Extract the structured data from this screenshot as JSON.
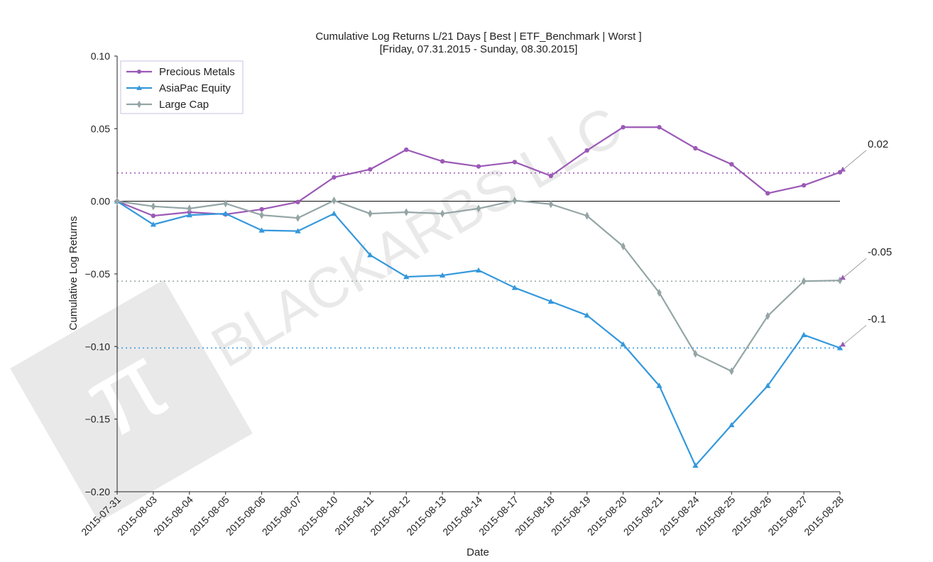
{
  "chart_data": {
    "type": "line",
    "title_line1": "Cumulative Log Returns L/21 Days [ Best | ETF_Benchmark | Worst ]",
    "title_line2": "[Friday, 07.31.2015 - Sunday, 08.30.2015]",
    "xlabel": "Date",
    "ylabel": "Cumulative Log Returns",
    "ylim": [
      -0.2,
      0.1
    ],
    "yticks": [
      0.1,
      0.05,
      0.0,
      -0.05,
      -0.1,
      -0.15,
      -0.2
    ],
    "ytick_labels": [
      "0.10",
      "0.05",
      "0.00",
      "−0.05",
      "−0.10",
      "−0.15",
      "−0.20"
    ],
    "categories": [
      "2015-07-31",
      "2015-08-03",
      "2015-08-04",
      "2015-08-05",
      "2015-08-06",
      "2015-08-07",
      "2015-08-10",
      "2015-08-11",
      "2015-08-12",
      "2015-08-13",
      "2015-08-14",
      "2015-08-17",
      "2015-08-18",
      "2015-08-19",
      "2015-08-20",
      "2015-08-21",
      "2015-08-24",
      "2015-08-25",
      "2015-08-26",
      "2015-08-27",
      "2015-08-28"
    ],
    "legend_position": "top-left",
    "watermark": "BLACKARBS LLC",
    "series": [
      {
        "name": "Precious Metals",
        "color": "#9b59b6",
        "marker": "circle",
        "values": [
          0.0,
          -0.01,
          -0.0075,
          -0.009,
          -0.0055,
          -0.0005,
          0.0165,
          0.022,
          0.0355,
          0.0275,
          0.024,
          0.027,
          0.0175,
          0.035,
          0.051,
          0.051,
          0.0365,
          0.0255,
          0.0055,
          0.011,
          0.02
        ],
        "ref_level": 0.0195,
        "annotation": "0.02"
      },
      {
        "name": "AsiaPac Equity",
        "color": "#3498db",
        "marker": "triangle",
        "values": [
          0.0,
          -0.016,
          -0.0095,
          -0.0085,
          -0.02,
          -0.0205,
          -0.0085,
          -0.037,
          -0.052,
          -0.051,
          -0.0475,
          -0.0595,
          -0.069,
          -0.0785,
          -0.0985,
          -0.127,
          -0.182,
          -0.154,
          -0.127,
          -0.092,
          -0.101
        ],
        "ref_level": -0.101,
        "annotation": "-0.1"
      },
      {
        "name": "Large Cap",
        "color": "#95a5a6",
        "marker": "diamond",
        "values": [
          0.0,
          -0.0035,
          -0.005,
          -0.0015,
          -0.0095,
          -0.0115,
          0.0005,
          -0.0085,
          -0.0075,
          -0.0085,
          -0.005,
          0.0005,
          -0.002,
          -0.01,
          -0.031,
          -0.063,
          -0.105,
          -0.117,
          -0.079,
          -0.055,
          -0.0545
        ],
        "ref_level": -0.055,
        "annotation": "-0.05"
      }
    ]
  }
}
